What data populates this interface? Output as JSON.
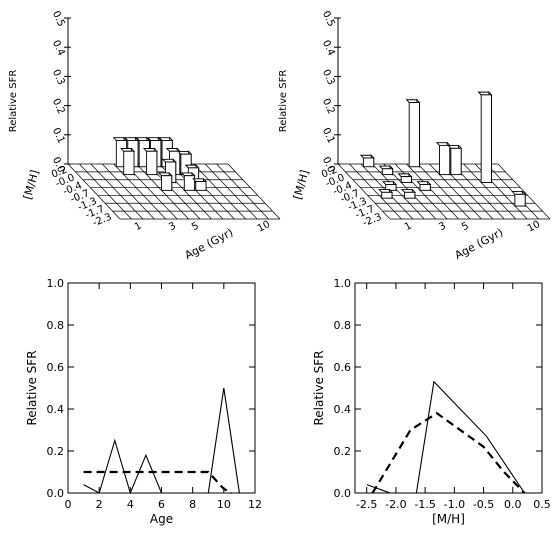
{
  "figure": {
    "panels_3d": [
      {
        "zlabel": "Relative SFR",
        "ylabel": "[M/H]",
        "xlabel": "Age (Gyr)",
        "z_ticks": [
          "0.0",
          "0.1",
          "0.2",
          "0.3",
          "0.4",
          "0.5"
        ],
        "mh_ticks": [
          "0.2",
          "-0.0",
          "-0.4",
          "-0.7",
          "-1.3",
          "-1.7",
          "-2.3"
        ],
        "age_ticks": [
          "1",
          "3",
          "5",
          "10"
        ],
        "bars": [
          {
            "age_bin": 4,
            "mh_bin": 0,
            "value": 0.09
          },
          {
            "age_bin": 5,
            "mh_bin": 0,
            "value": 0.09
          },
          {
            "age_bin": 6,
            "mh_bin": 0,
            "value": 0.09
          },
          {
            "age_bin": 7,
            "mh_bin": 0,
            "value": 0.09
          },
          {
            "age_bin": 8,
            "mh_bin": 0,
            "value": 0.09
          },
          {
            "age_bin": 4,
            "mh_bin": 1,
            "value": 0.08
          },
          {
            "age_bin": 6,
            "mh_bin": 1,
            "value": 0.08
          },
          {
            "age_bin": 8,
            "mh_bin": 1,
            "value": 0.08
          },
          {
            "age_bin": 9,
            "mh_bin": 1,
            "value": 0.07
          },
          {
            "age_bin": 7,
            "mh_bin": 2,
            "value": 0.07
          },
          {
            "age_bin": 9,
            "mh_bin": 2,
            "value": 0.05
          },
          {
            "age_bin": 6,
            "mh_bin": 3,
            "value": 0.05
          },
          {
            "age_bin": 8,
            "mh_bin": 3,
            "value": 0.05
          },
          {
            "age_bin": 9,
            "mh_bin": 3,
            "value": 0.03
          }
        ]
      },
      {
        "zlabel": "Relative SFR",
        "ylabel": "[M/H]",
        "xlabel": "Age (Gyr)",
        "z_ticks": [
          "0.0",
          "0.1",
          "0.2",
          "0.3",
          "0.4",
          "0.5"
        ],
        "mh_ticks": [
          "0.2",
          "-0.0",
          "-0.4",
          "-0.7",
          "-1.3",
          "-1.7",
          "-2.3"
        ],
        "age_ticks": [
          "1",
          "3",
          "5",
          "10"
        ],
        "bars": [
          {
            "age_bin": 6,
            "mh_bin": 0,
            "value": 0.22
          },
          {
            "age_bin": 2,
            "mh_bin": 0,
            "value": 0.03
          },
          {
            "age_bin": 8,
            "mh_bin": 1,
            "value": 0.1
          },
          {
            "age_bin": 9,
            "mh_bin": 1,
            "value": 0.09
          },
          {
            "age_bin": 3,
            "mh_bin": 1,
            "value": 0.02
          },
          {
            "age_bin": 11,
            "mh_bin": 2,
            "value": 0.3
          },
          {
            "age_bin": 4,
            "mh_bin": 2,
            "value": 0.02
          },
          {
            "age_bin": 2,
            "mh_bin": 3,
            "value": 0.02
          },
          {
            "age_bin": 5,
            "mh_bin": 3,
            "value": 0.02
          },
          {
            "age_bin": 1,
            "mh_bin": 4,
            "value": 0.02
          },
          {
            "age_bin": 3,
            "mh_bin": 4,
            "value": 0.02
          },
          {
            "age_bin": 12,
            "mh_bin": 5,
            "value": 0.04
          }
        ]
      }
    ]
  },
  "chart_data": [
    {
      "type": "line",
      "xlabel": "Age",
      "ylabel": "Relative SFR",
      "xlim": [
        0,
        12
      ],
      "ylim": [
        0,
        1
      ],
      "x_ticks": [
        "0",
        "2",
        "4",
        "6",
        "8",
        "10",
        "12"
      ],
      "y_ticks": [
        "0.0",
        "0.2",
        "0.4",
        "0.6",
        "0.8",
        "1.0"
      ],
      "series": [
        {
          "style": "solid",
          "x": [
            1,
            2,
            3,
            4,
            5,
            6,
            9,
            10,
            11
          ],
          "y": [
            0.04,
            0.0,
            0.25,
            0.0,
            0.18,
            0.0,
            0.0,
            0.5,
            0.0
          ]
        },
        {
          "style": "dashed",
          "x": [
            1,
            9,
            10,
            10.5
          ],
          "y": [
            0.1,
            0.1,
            0.02,
            0.0
          ]
        }
      ]
    },
    {
      "type": "line",
      "xlabel": "[M/H]",
      "ylabel": "Relative SFR",
      "xlim": [
        -2.7,
        0.5
      ],
      "ylim": [
        0,
        1
      ],
      "x_ticks": [
        "-2.5",
        "-2.0",
        "-1.5",
        "-1.0",
        "-0.5",
        "0.0",
        "0.5"
      ],
      "y_ticks": [
        "0.0",
        "0.2",
        "0.4",
        "0.6",
        "0.8",
        "1.0"
      ],
      "series": [
        {
          "style": "solid",
          "x": [
            -2.5,
            -2.1,
            -1.65,
            -1.35,
            -0.45,
            0.2
          ],
          "y": [
            0.04,
            0.0,
            0.0,
            0.53,
            0.27,
            0.0
          ]
        },
        {
          "style": "dashed",
          "x": [
            -2.4,
            -1.75,
            -1.3,
            -0.5,
            -0.15,
            0.2
          ],
          "y": [
            0.0,
            0.3,
            0.38,
            0.22,
            0.1,
            0.0
          ]
        }
      ]
    }
  ]
}
